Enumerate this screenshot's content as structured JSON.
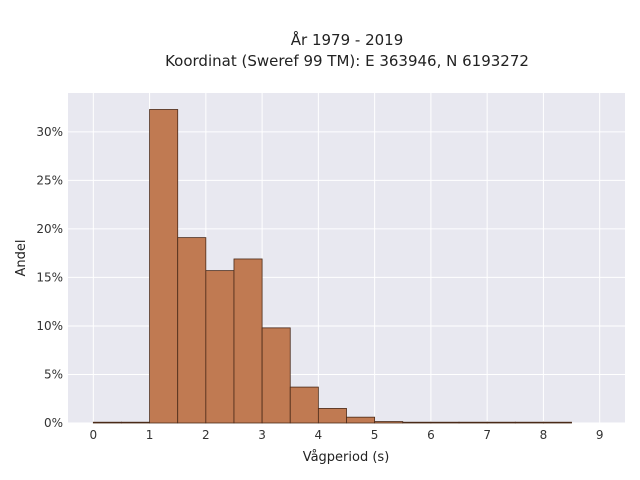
{
  "chart_data": {
    "type": "bar",
    "title_line1": "År 1979 - 2019",
    "title_line2": "Koordinat (Sweref 99 TM): E 363946, N 6193272",
    "xlabel": "Vågperiod (s)",
    "ylabel": "Andel",
    "xlim": [
      -0.45,
      9.45
    ],
    "ylim": [
      0,
      0.34
    ],
    "xticks": [
      0,
      1,
      2,
      3,
      4,
      5,
      6,
      7,
      8,
      9
    ],
    "xtick_labels": [
      "0",
      "1",
      "2",
      "3",
      "4",
      "5",
      "6",
      "7",
      "8",
      "9"
    ],
    "yticks": [
      0,
      0.05,
      0.1,
      0.15,
      0.2,
      0.25,
      0.3
    ],
    "ytick_labels": [
      "0%",
      "5%",
      "10%",
      "15%",
      "20%",
      "25%",
      "30%"
    ],
    "grid": true,
    "bin_edges": [
      0,
      0.5,
      1,
      1.5,
      2,
      2.5,
      3,
      3.5,
      4,
      4.5,
      5,
      5.5,
      6,
      6.5,
      7,
      7.5,
      8,
      8.5
    ],
    "values": [
      0.0005,
      0.0,
      0.323,
      0.191,
      0.157,
      0.169,
      0.098,
      0.037,
      0.015,
      0.006,
      0.0015,
      0.0005,
      0.0003,
      0.0002,
      0.0002,
      0.0002,
      0.0002
    ],
    "colors": {
      "bar_fill": "#c07a52",
      "bar_stroke": "#4a2a18",
      "plot_bg": "#e8e8f0",
      "grid": "#ffffff"
    }
  }
}
